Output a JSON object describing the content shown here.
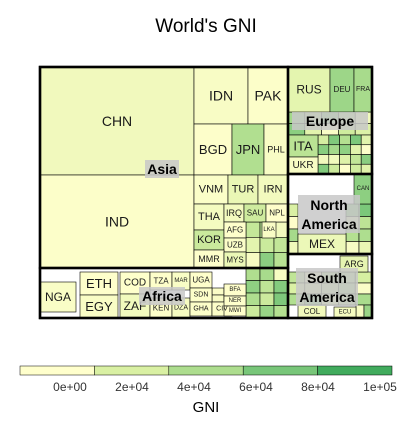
{
  "chart_data": {
    "type": "treemap",
    "title": "World's GNI",
    "legend": {
      "title": "GNI",
      "placement": "bottom",
      "ticks": [
        "0e+00",
        "2e+04",
        "4e+04",
        "6e+04",
        "8e+04",
        "1e+05"
      ],
      "colors": [
        "#ffffcc",
        "#d9f0a3",
        "#addd8e",
        "#78c679",
        "#41ab5d",
        "#238443"
      ]
    },
    "regions": [
      {
        "name": "Asia",
        "countries": [
          {
            "label": "CHN",
            "gni": 7400
          },
          {
            "label": "IND",
            "gni": 1600
          },
          {
            "label": "IDN",
            "gni": 3600
          },
          {
            "label": "PAK",
            "gni": 1400
          },
          {
            "label": "BGD",
            "gni": 1000
          },
          {
            "label": "JPN",
            "gni": 38000
          },
          {
            "label": "PHL",
            "gni": 3500
          },
          {
            "label": "VNM",
            "gni": 2000
          },
          {
            "label": "TUR",
            "gni": 11000
          },
          {
            "label": "IRN",
            "gni": 7000
          },
          {
            "label": "THA",
            "gni": 5800
          },
          {
            "label": "IRQ",
            "gni": 6500
          },
          {
            "label": "SAU",
            "gni": 25000
          },
          {
            "label": "NPL",
            "gni": 750
          },
          {
            "label": "KOR",
            "gni": 27000
          },
          {
            "label": "AFG",
            "gni": 680
          },
          {
            "label": "LKA",
            "gni": 3400
          },
          {
            "label": "UZB",
            "gni": 2100
          },
          {
            "label": "MMR",
            "gni": 1200
          },
          {
            "label": "MYS",
            "gni": 10600
          }
        ]
      },
      {
        "name": "Europe",
        "countries": [
          {
            "label": "RUS",
            "gni": 14000
          },
          {
            "label": "DEU",
            "gni": 46000
          },
          {
            "label": "FRA",
            "gni": 42000
          },
          {
            "label": "ITA",
            "gni": 34000
          },
          {
            "label": "UKR",
            "gni": 4000
          }
        ]
      },
      {
        "name": "North America",
        "countries": [
          {
            "label": "MEX",
            "gni": 9800
          },
          {
            "label": "CAN",
            "gni": 52000
          }
        ]
      },
      {
        "name": "Africa",
        "countries": [
          {
            "label": "NGA",
            "gni": 2900
          },
          {
            "label": "ETH",
            "gni": 550
          },
          {
            "label": "EGY",
            "gni": 3300
          },
          {
            "label": "COD",
            "gni": 430
          },
          {
            "label": "TZA",
            "gni": 860
          },
          {
            "label": "ZAF",
            "gni": 7200
          },
          {
            "label": "KEN",
            "gni": 1250
          },
          {
            "label": "DZA",
            "gni": 5400
          },
          {
            "label": "MAR",
            "gni": 3000
          },
          {
            "label": "UGA",
            "gni": 670
          },
          {
            "label": "SDN",
            "gni": 1700
          },
          {
            "label": "GHA",
            "gni": 1600
          },
          {
            "label": "CIV",
            "gni": 1500
          },
          {
            "label": "BFA",
            "gni": 700
          },
          {
            "label": "NER",
            "gni": 410
          },
          {
            "label": "MWI",
            "gni": 250
          }
        ]
      },
      {
        "name": "South America",
        "countries": [
          {
            "label": "ARG",
            "gni": 13000
          },
          {
            "label": "COL",
            "gni": 7600
          },
          {
            "label": "ECU",
            "gni": 6000
          }
        ]
      }
    ]
  }
}
